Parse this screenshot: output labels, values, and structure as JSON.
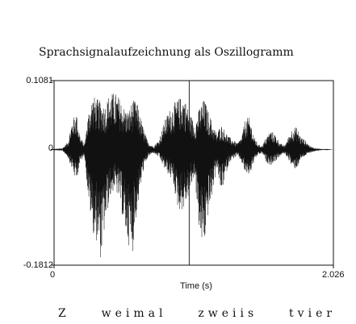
{
  "chart_data": {
    "type": "line",
    "title": "Sprachsignalaufzeichnung als Oszillogramm",
    "xlabel": "Time (s)",
    "ylabel": "",
    "xlim": [
      0,
      2.026
    ],
    "ylim": [
      -0.1812,
      0.1081
    ],
    "x_tick_labels": [
      "0",
      "2.026"
    ],
    "y_tick_labels": [
      "0.1081",
      "0",
      "-0.1812"
    ],
    "grid": false,
    "series": [
      {
        "envelope": {
          "t": [
            0.0,
            0.06,
            0.1,
            0.13,
            0.16,
            0.19,
            0.22,
            0.25,
            0.28,
            0.31,
            0.34,
            0.37,
            0.4,
            0.44,
            0.48,
            0.51,
            0.54,
            0.57,
            0.6,
            0.64,
            0.68,
            0.72,
            0.76,
            0.8,
            0.83,
            0.86,
            0.9,
            0.94,
            0.98,
            1.02,
            1.06,
            1.09,
            1.12,
            1.15,
            1.18,
            1.21,
            1.24,
            1.27,
            1.3,
            1.33,
            1.36,
            1.39,
            1.42,
            1.45,
            1.48,
            1.51,
            1.54,
            1.57,
            1.6,
            1.64,
            1.67,
            1.7,
            1.73,
            1.76,
            1.79,
            1.82,
            1.86,
            1.9,
            1.94,
            1.98,
            2.026
          ],
          "max": [
            0.001,
            0.002,
            0.012,
            0.045,
            0.06,
            0.02,
            0.008,
            0.06,
            0.085,
            0.08,
            0.075,
            0.07,
            0.088,
            0.09,
            0.08,
            0.065,
            0.06,
            0.078,
            0.075,
            0.04,
            0.012,
            0.005,
            0.015,
            0.045,
            0.06,
            0.07,
            0.08,
            0.085,
            0.06,
            0.04,
            0.07,
            0.08,
            0.06,
            0.04,
            0.025,
            0.04,
            0.03,
            0.02,
            0.015,
            0.01,
            0.02,
            0.05,
            0.05,
            0.02,
            0.008,
            0.006,
            0.02,
            0.03,
            0.025,
            0.01,
            0.006,
            0.02,
            0.035,
            0.035,
            0.02,
            0.015,
            0.005,
            0.002,
            0.001,
            0.001,
            0.0
          ],
          "min": [
            -0.001,
            -0.002,
            -0.012,
            -0.03,
            -0.05,
            -0.02,
            -0.008,
            -0.08,
            -0.13,
            -0.145,
            -0.175,
            -0.12,
            -0.08,
            -0.06,
            -0.085,
            -0.125,
            -0.15,
            -0.16,
            -0.1,
            -0.04,
            -0.012,
            -0.005,
            -0.012,
            -0.03,
            -0.04,
            -0.05,
            -0.095,
            -0.095,
            -0.07,
            -0.04,
            -0.15,
            -0.15,
            -0.1,
            -0.07,
            -0.025,
            -0.07,
            -0.045,
            -0.02,
            -0.015,
            -0.01,
            -0.02,
            -0.04,
            -0.04,
            -0.02,
            -0.008,
            -0.006,
            -0.02,
            -0.025,
            -0.02,
            -0.01,
            -0.006,
            -0.015,
            -0.03,
            -0.03,
            -0.015,
            -0.01,
            -0.005,
            -0.002,
            -0.001,
            -0.001,
            0.0
          ]
        },
        "spikes": [
          {
            "t": 0.98,
            "value": 0.1081
          },
          {
            "t": 0.98,
            "value": -0.1812
          }
        ]
      }
    ],
    "annotations": [
      "Z  weimal  zweiis  tvier"
    ]
  }
}
